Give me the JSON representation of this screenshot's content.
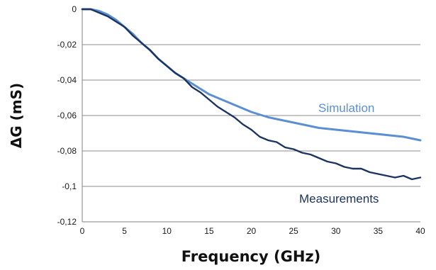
{
  "chart_data": {
    "type": "line",
    "xlabel": "Frequency (GHz)",
    "ylabel": "ΔG (mS)",
    "xlim": [
      0,
      40
    ],
    "ylim": [
      -0.12,
      0
    ],
    "x_ticks": [
      0,
      5,
      10,
      15,
      20,
      25,
      30,
      35,
      40
    ],
    "x_tick_labels": [
      "0",
      "5",
      "10",
      "15",
      "20",
      "25",
      "30",
      "35",
      "40"
    ],
    "y_ticks": [
      0,
      -0.02,
      -0.04,
      -0.06,
      -0.08,
      -0.1,
      -0.12
    ],
    "y_tick_labels": [
      "0",
      "-0,02",
      "-0,04",
      "-0,06",
      "-0,08",
      "-0,1",
      "-0,12"
    ],
    "grid": "horizontal",
    "legend": "inline",
    "series": [
      {
        "name": "Simulation",
        "color": "#5b8fd4",
        "x": [
          0,
          1,
          2,
          3,
          4,
          5,
          6,
          7,
          8,
          9,
          10,
          11,
          12,
          13,
          14,
          15,
          16,
          17,
          18,
          19,
          20,
          22,
          24,
          26,
          28,
          30,
          32,
          34,
          36,
          38,
          40
        ],
        "y": [
          0,
          0,
          -0.001,
          -0.003,
          -0.006,
          -0.01,
          -0.014,
          -0.019,
          -0.023,
          -0.028,
          -0.032,
          -0.036,
          -0.039,
          -0.042,
          -0.045,
          -0.048,
          -0.05,
          -0.052,
          -0.054,
          -0.056,
          -0.058,
          -0.061,
          -0.063,
          -0.065,
          -0.067,
          -0.068,
          -0.069,
          -0.07,
          -0.071,
          -0.072,
          -0.074
        ]
      },
      {
        "name": "Measurements",
        "color": "#1c3460",
        "x": [
          0,
          1,
          2,
          3,
          4,
          5,
          6,
          7,
          8,
          9,
          10,
          11,
          12,
          13,
          14,
          15,
          16,
          17,
          18,
          19,
          20,
          21,
          22,
          23,
          24,
          25,
          26,
          27,
          28,
          29,
          30,
          31,
          32,
          33,
          34,
          35,
          36,
          37,
          38,
          39,
          40
        ],
        "y": [
          0,
          0,
          -0.002,
          -0.004,
          -0.007,
          -0.01,
          -0.015,
          -0.019,
          -0.023,
          -0.028,
          -0.032,
          -0.036,
          -0.039,
          -0.044,
          -0.047,
          -0.051,
          -0.055,
          -0.058,
          -0.061,
          -0.065,
          -0.068,
          -0.072,
          -0.074,
          -0.075,
          -0.078,
          -0.079,
          -0.081,
          -0.082,
          -0.084,
          -0.086,
          -0.087,
          -0.089,
          -0.09,
          -0.09,
          -0.092,
          -0.093,
          -0.094,
          -0.095,
          -0.094,
          -0.096,
          -0.095
        ]
      }
    ]
  }
}
